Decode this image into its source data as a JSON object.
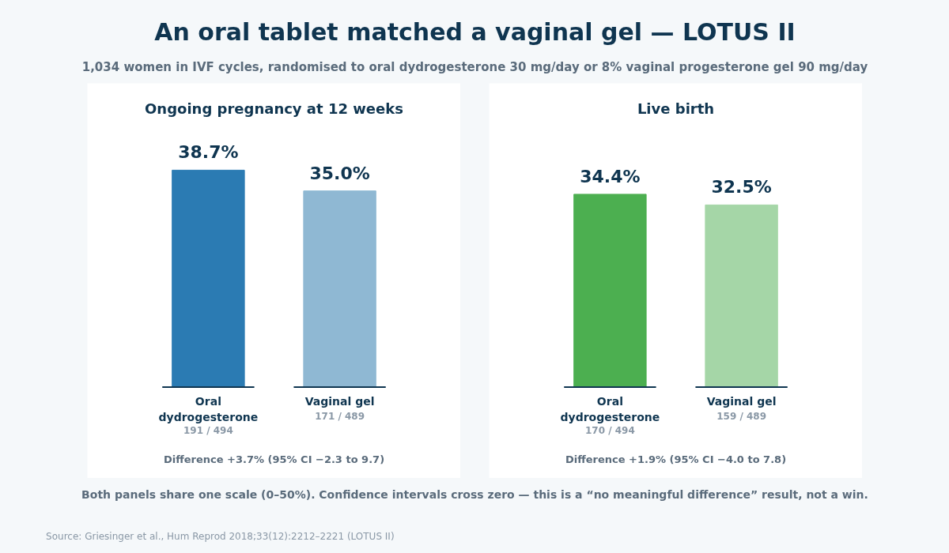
{
  "chart_data": [
    {
      "type": "other",
      "title": "An oral tablet matched a vaginal gel — LOTUS II",
      "subtitle": "1,034 women in IVF cycles, randomised to oral dydrogesterone 30 mg/day or 8% vaginal progesterone gel 90 mg/day",
      "annotations": [
        "Both panels share one scale (0–50%). Confidence intervals cross zero — this is a “no meaningful difference” result, not a win.",
        "Source: Griesinger et al., Hum Reprod 2018;33(12):2212–2221 (LOTUS II)"
      ]
    },
    {
      "type": "bar",
      "title": "Ongoing pregnancy at 12 weeks",
      "categories": [
        "Oral dydrogesterone",
        "Vaginal gel"
      ],
      "values": [
        38.7,
        35.0
      ],
      "colors": [
        "#2b7bb3",
        "#8fb8d3"
      ],
      "value_labels": [
        "38.7%",
        "35.0%"
      ],
      "annotations": [
        "191 / 494",
        "171 / 489",
        "Difference +3.7% (95% CI −2.3 to 9.7)"
      ]
    },
    {
      "type": "bar",
      "title": "Live birth",
      "categories": [
        "Oral dydrogesterone",
        "Vaginal gel"
      ],
      "values": [
        34.4,
        32.5
      ],
      "colors": [
        "#4caf50",
        "#a5d6a7"
      ],
      "value_labels": [
        "34.4%",
        "32.5%"
      ],
      "annotations": [
        "170 / 494",
        "159 / 489",
        "Difference +1.9% (95% CI −4.0 to 7.8)"
      ]
    }
  ]
}
